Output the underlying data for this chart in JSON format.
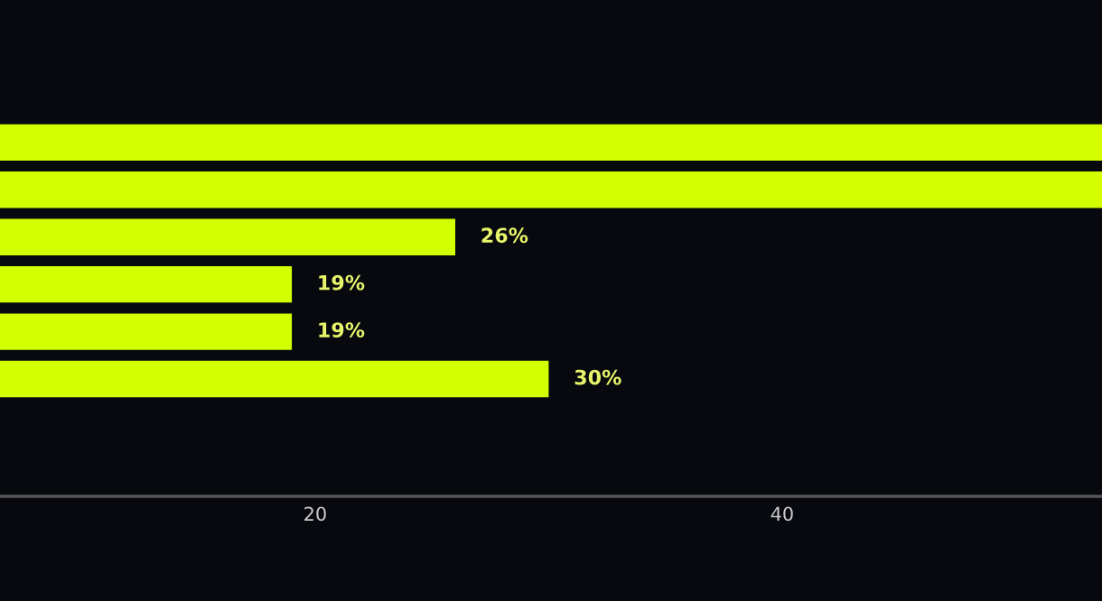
{
  "chart_data": {
    "type": "bar",
    "orientation": "horizontal",
    "categories": [
      null,
      null,
      null,
      null,
      null,
      null
    ],
    "values": [
      53.7,
      53.7,
      26,
      19,
      19,
      30
    ],
    "value_labels": [
      null,
      null,
      "26%",
      "19%",
      "19%",
      "30%"
    ],
    "color": "#d4ff00",
    "xlim": [
      6.5,
      53.7
    ],
    "xticks": [
      20,
      40
    ],
    "grid": false,
    "legend": false
  }
}
